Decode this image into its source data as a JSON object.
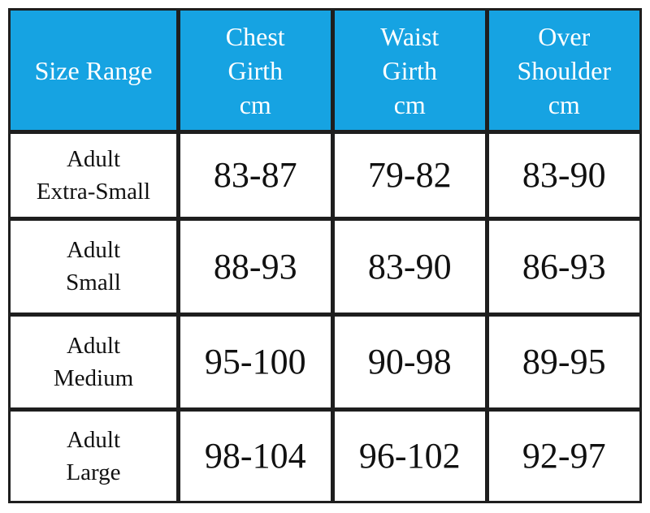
{
  "table": {
    "header": [
      [
        "Size Range"
      ],
      [
        "Chest",
        "Girth",
        "cm"
      ],
      [
        "Waist",
        "Girth",
        "cm"
      ],
      [
        "Over",
        "Shoulder",
        "cm"
      ]
    ],
    "rows": [
      [
        [
          "Adult",
          "Extra-Small"
        ],
        "83-87",
        "79-82",
        "83-90"
      ],
      [
        [
          "Adult",
          "Small"
        ],
        "88-93",
        "83-90",
        "86-93"
      ],
      [
        [
          "Adult",
          "Medium"
        ],
        "95-100",
        "90-98",
        "89-95"
      ],
      [
        [
          "Adult",
          "Large"
        ],
        "98-104",
        "96-102",
        "92-97"
      ]
    ]
  }
}
